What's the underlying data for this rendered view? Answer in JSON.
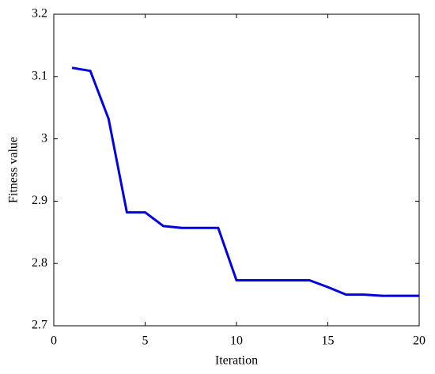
{
  "chart_data": {
    "type": "line",
    "x_label": "Iteration",
    "y_label": "Fitness value",
    "x": [
      1,
      2,
      3,
      4,
      5,
      6,
      7,
      8,
      9,
      10,
      11,
      12,
      13,
      14,
      15,
      16,
      17,
      18,
      19,
      20
    ],
    "series": [
      {
        "color": "#0000e0",
        "values": [
          3.114,
          3.109,
          3.032,
          2.882,
          2.882,
          2.86,
          2.857,
          2.857,
          2.857,
          2.773,
          2.773,
          2.773,
          2.773,
          2.773,
          2.762,
          2.75,
          2.75,
          2.748,
          2.748,
          2.748
        ]
      }
    ],
    "xlim": [
      0,
      20
    ],
    "ylim": [
      2.7,
      3.2
    ],
    "xticks": [
      0,
      5,
      10,
      15,
      20
    ],
    "yticks": [
      2.7,
      2.8,
      2.9,
      3,
      3.1,
      3.2
    ]
  }
}
